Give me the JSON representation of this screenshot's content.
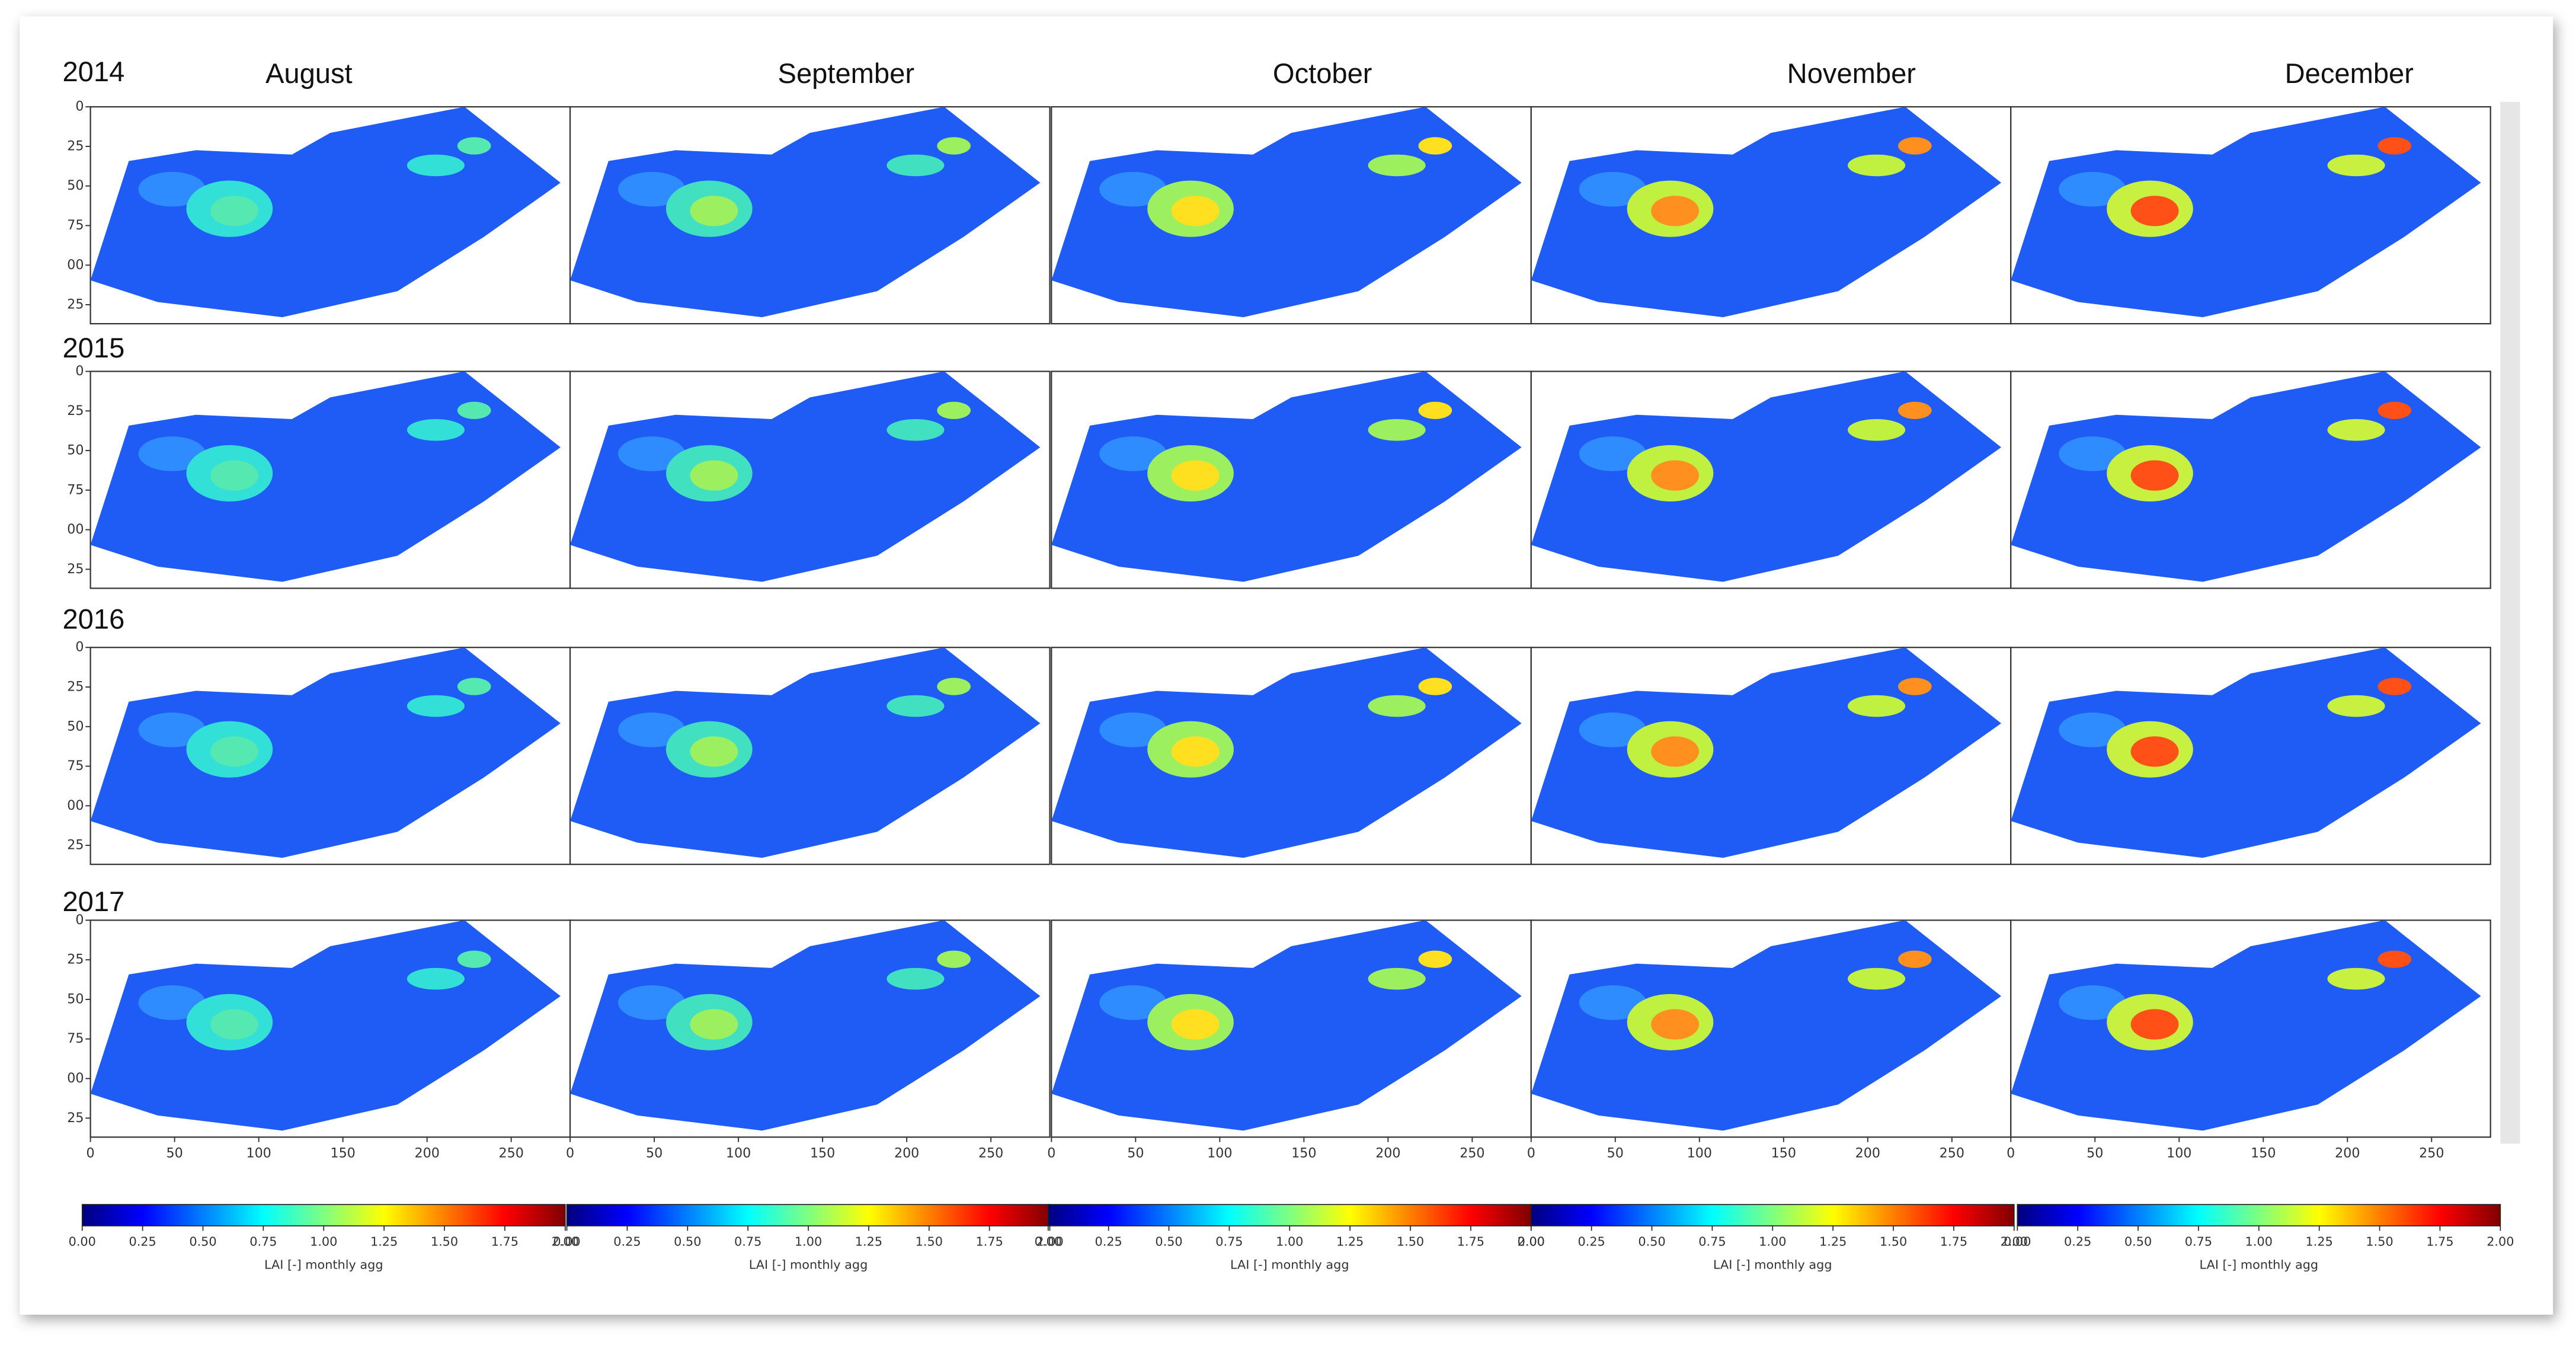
{
  "years": [
    "2014",
    "2015",
    "2016",
    "2017"
  ],
  "months": [
    "August",
    "September",
    "October",
    "November",
    "December"
  ],
  "map_axes": {
    "xlim": [
      0,
      285
    ],
    "ylim": [
      0,
      137
    ],
    "xticks": [
      0,
      50,
      100,
      150,
      200,
      250
    ],
    "yticks": [
      0,
      25,
      50,
      75,
      {
        "value": 100,
        "label": "00"
      },
      {
        "value": 125,
        "label": "25"
      }
    ]
  },
  "colorbar": {
    "range": [
      0,
      2
    ],
    "label": "LAI [-] monthly agg",
    "colors": [
      "#00007f",
      "#0000ff",
      "#007fff",
      "#00ffff",
      "#7fff7f",
      "#ffff00",
      "#ff7f00",
      "#ff0000",
      "#7f0000"
    ],
    "ticks": [
      {
        "value": 0,
        "label": "0.00"
      },
      {
        "value": 0.25,
        "label": "0.25"
      },
      {
        "value": 0.5,
        "label": "0.50"
      },
      {
        "value": 0.75,
        "label": "0.75"
      },
      {
        "value": 1,
        "label": "1.00"
      },
      {
        "value": 1.25,
        "label": "1.25"
      },
      {
        "value": 1.5,
        "label": "1.50"
      },
      {
        "value": 1.75,
        "label": "1.75"
      },
      {
        "value": 2,
        "label": "2.00"
      }
    ]
  }
}
